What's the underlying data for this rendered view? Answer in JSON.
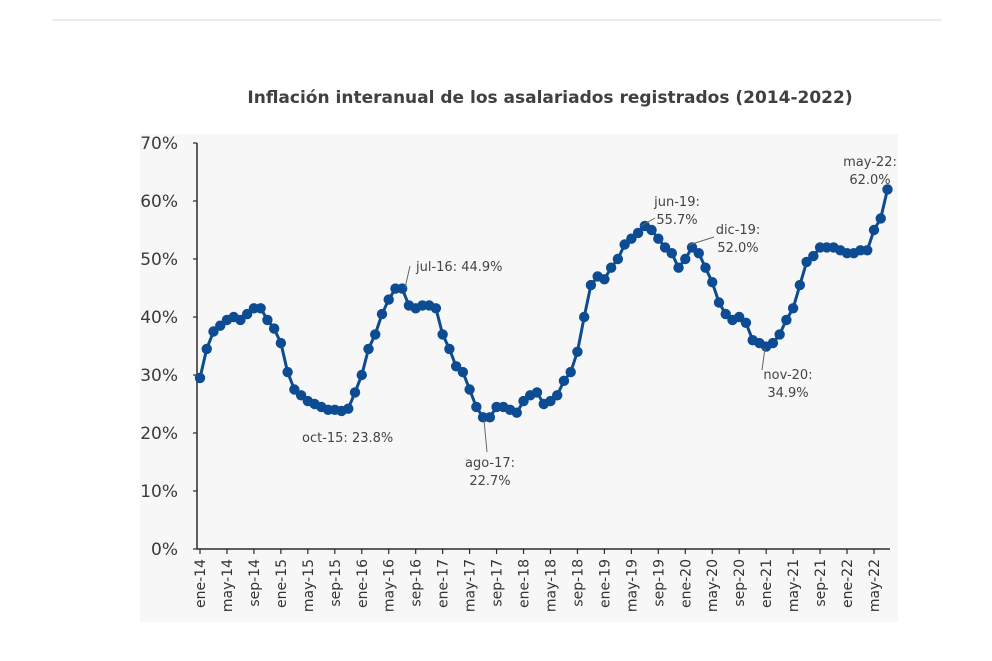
{
  "chart_data": {
    "type": "line",
    "title": "Inflación interanual de los asalariados registrados (2014-2022)",
    "xlabel": "",
    "ylabel": "",
    "ylim": [
      0,
      70
    ],
    "y_ticks": [
      "0%",
      "10%",
      "20%",
      "30%",
      "40%",
      "50%",
      "60%",
      "70%"
    ],
    "x_ticks": [
      "ene-14",
      "may-14",
      "sep-14",
      "ene-15",
      "may-15",
      "sep-15",
      "ene-16",
      "may-16",
      "sep-16",
      "ene-17",
      "may-17",
      "sep-17",
      "ene-18",
      "may-18",
      "sep-18",
      "ene-19",
      "may-19",
      "sep-19",
      "ene-20",
      "may-20",
      "sep-20",
      "ene-21",
      "may-21",
      "sep-21",
      "ene-22",
      "may-22"
    ],
    "color": "#0d4c92",
    "grid": false,
    "series": [
      {
        "values": [
          29.5,
          34.5,
          37.5,
          38.5,
          39.5,
          40.0,
          39.5,
          40.5,
          41.5,
          41.5,
          39.5,
          38.0,
          35.5,
          30.5,
          27.5,
          26.5,
          25.5,
          25.0,
          24.5,
          24.0,
          24.0,
          23.8,
          24.2,
          27.0,
          30.0,
          34.5,
          37.0,
          40.5,
          43.0,
          44.9,
          44.9,
          42.0,
          41.5,
          42.0,
          42.0,
          41.5,
          37.0,
          34.5,
          31.5,
          30.5,
          27.5,
          24.5,
          22.7,
          22.7,
          24.5,
          24.5,
          24.0,
          23.5,
          25.5,
          26.5,
          27.0,
          25.0,
          25.5,
          26.5,
          29.0,
          30.5,
          34.0,
          40.0,
          45.5,
          47.0,
          46.5,
          48.5,
          50.0,
          52.5,
          53.5,
          54.5,
          55.7,
          55.0,
          53.5,
          52.0,
          51.0,
          48.5,
          50.0,
          52.0,
          51.0,
          48.5,
          46.0,
          42.5,
          40.5,
          39.5,
          40.0,
          39.0,
          36.0,
          35.5,
          34.9,
          35.5,
          37.0,
          39.5,
          41.5,
          45.5,
          49.5,
          50.5,
          52.0,
          52.0,
          52.0,
          51.5,
          51.0,
          51.0,
          51.5,
          51.5,
          55.0,
          57.0,
          62.0
        ]
      }
    ],
    "annotations": [
      {
        "lines": [
          "jul-16: 44.9%"
        ]
      },
      {
        "lines": [
          "oct-15: 23.8%"
        ]
      },
      {
        "lines": [
          "ago-17:",
          "22.7%"
        ]
      },
      {
        "lines": [
          "jun-19:",
          "55.7%"
        ]
      },
      {
        "lines": [
          "dic-19:",
          "52.0%"
        ]
      },
      {
        "lines": [
          "nov-20:",
          "34.9%"
        ]
      },
      {
        "lines": [
          "may-22:",
          "62.0%"
        ]
      }
    ]
  }
}
